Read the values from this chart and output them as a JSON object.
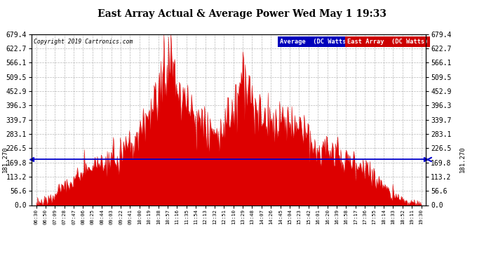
{
  "title": "East Array Actual & Average Power Wed May 1 19:33",
  "copyright": "Copyright 2019 Cartronics.com",
  "average_value": 181.27,
  "ymax": 679.4,
  "yticks": [
    0.0,
    56.6,
    113.2,
    169.8,
    226.5,
    283.1,
    339.7,
    396.3,
    452.9,
    509.5,
    566.1,
    622.7,
    679.4
  ],
  "ytick_labels": [
    "0.0",
    "56.6",
    "113.2",
    "169.8",
    "226.5",
    "283.1",
    "339.7",
    "396.3",
    "452.9",
    "509.5",
    "566.1",
    "622.7",
    "679.4"
  ],
  "legend_avg_bg": "#0000bb",
  "legend_east_bg": "#cc0000",
  "legend_avg_text": "Average  (DC Watts)",
  "legend_east_text": "East Array  (DC Watts)",
  "area_color": "#dd0000",
  "line_color": "#0000cc",
  "grid_color": "#999999",
  "bg_color": "#ffffff",
  "left_label": "181.270",
  "right_label": "181.270",
  "x_labels": [
    "06:30",
    "06:50",
    "07:09",
    "07:28",
    "07:47",
    "08:06",
    "08:25",
    "08:44",
    "09:03",
    "09:22",
    "09:41",
    "10:00",
    "10:19",
    "10:38",
    "10:57",
    "11:16",
    "11:35",
    "11:54",
    "12:13",
    "12:32",
    "12:51",
    "13:10",
    "13:29",
    "13:48",
    "14:07",
    "14:26",
    "14:45",
    "15:04",
    "15:23",
    "15:42",
    "16:01",
    "16:20",
    "16:39",
    "16:58",
    "17:17",
    "17:36",
    "17:55",
    "18:14",
    "18:33",
    "18:52",
    "19:11",
    "19:30"
  ],
  "anchor_values": [
    5,
    20,
    45,
    80,
    100,
    130,
    150,
    165,
    185,
    215,
    250,
    290,
    370,
    420,
    660,
    450,
    410,
    370,
    320,
    280,
    300,
    370,
    520,
    410,
    360,
    320,
    330,
    360,
    300,
    260,
    230,
    215,
    200,
    180,
    160,
    135,
    105,
    75,
    45,
    18,
    8,
    3
  ]
}
